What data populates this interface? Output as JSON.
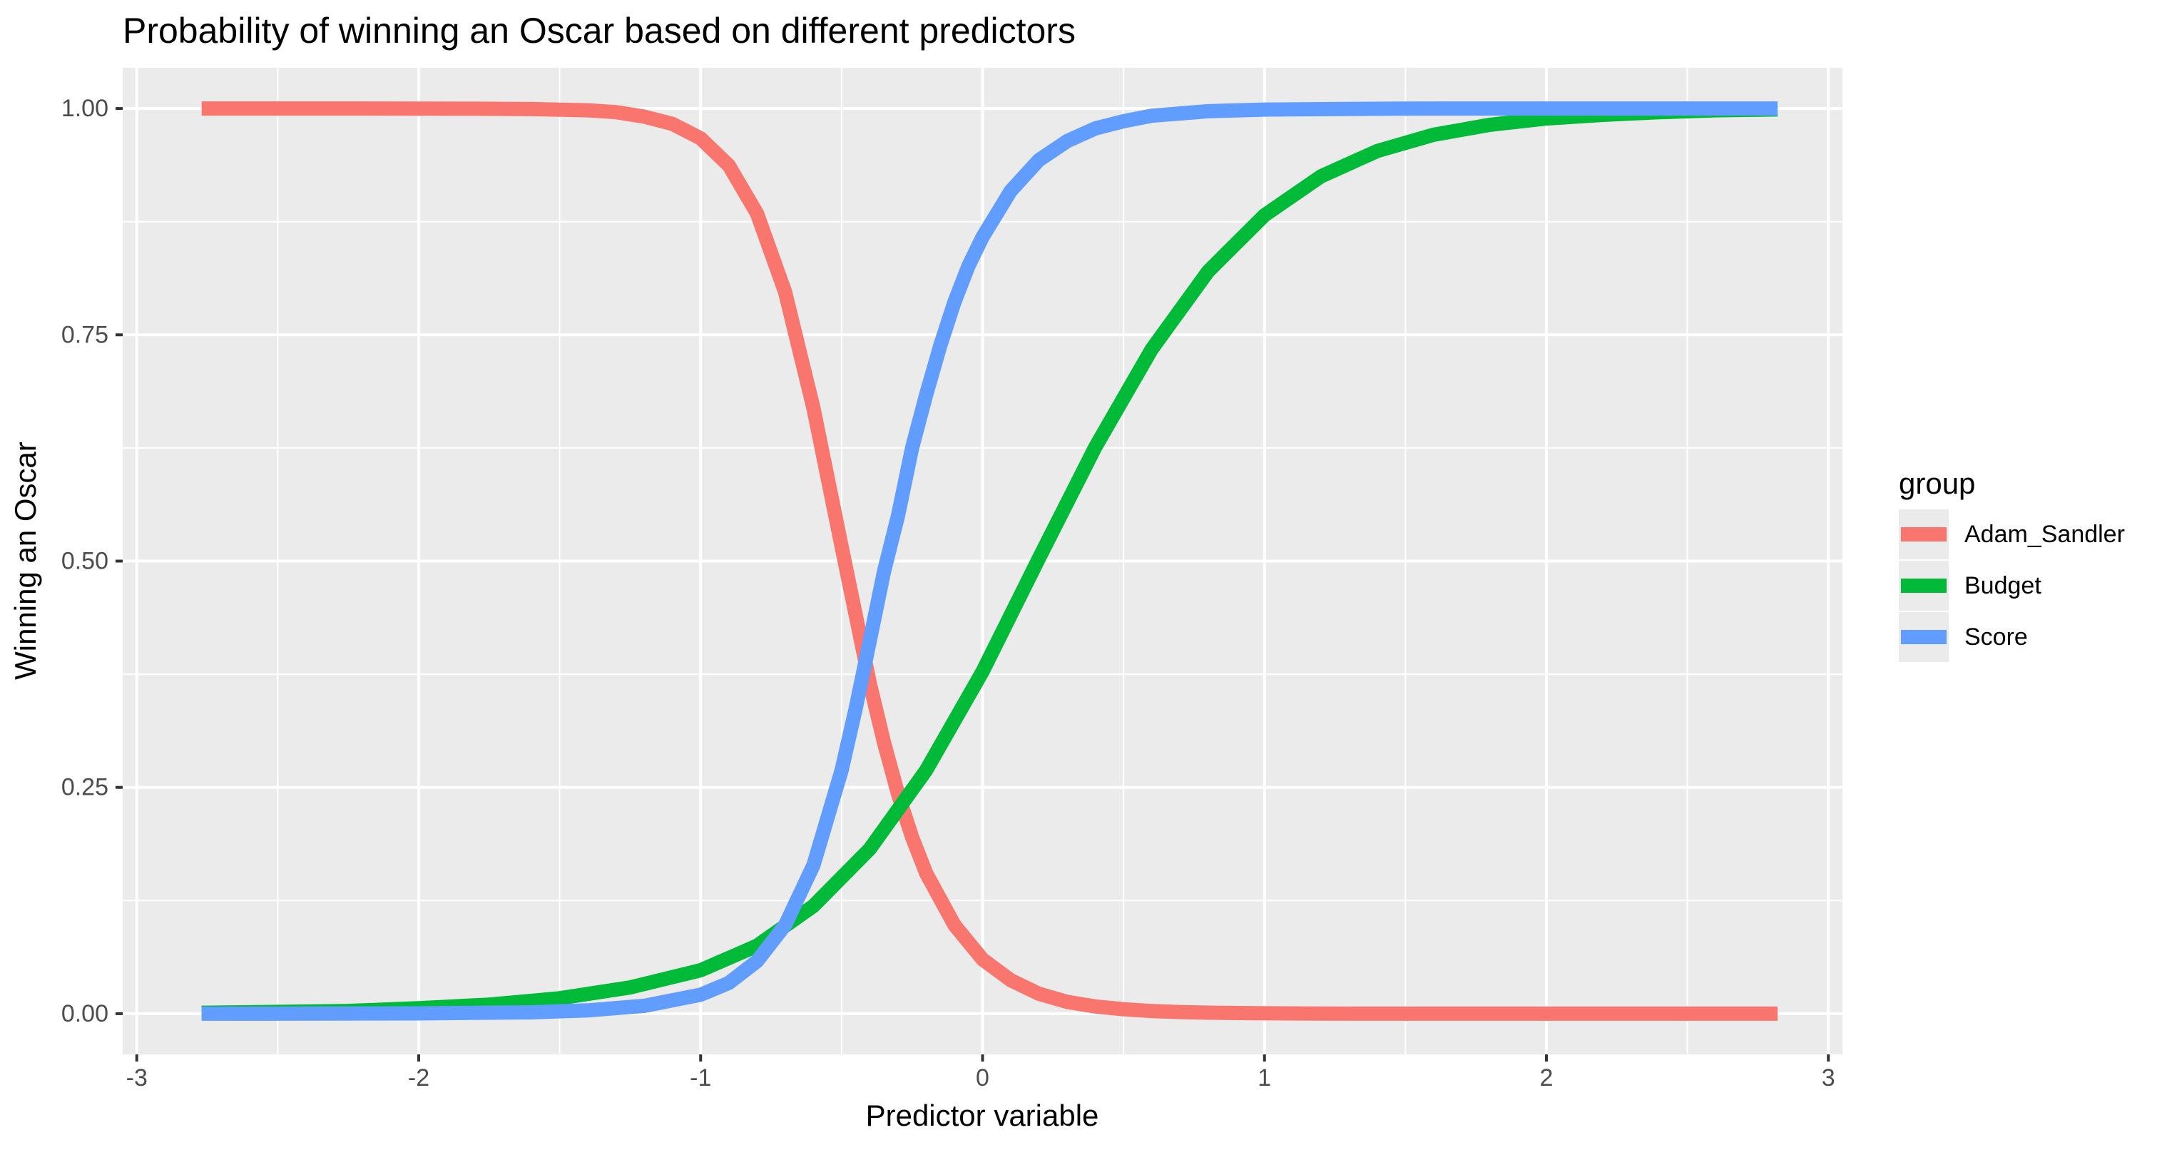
{
  "chart_data": {
    "type": "line",
    "title": "Probability of winning an Oscar based on different predictors",
    "xlabel": "Predictor variable",
    "ylabel": "Winning an Oscar",
    "xlim": [
      -3.05,
      3.05
    ],
    "ylim": [
      -0.045,
      1.045
    ],
    "grid": true,
    "x_ticks": [
      {
        "value": -3,
        "label": "-3"
      },
      {
        "value": -2,
        "label": "-2"
      },
      {
        "value": -1,
        "label": "-1"
      },
      {
        "value": 0,
        "label": "0"
      },
      {
        "value": 1,
        "label": "1"
      },
      {
        "value": 2,
        "label": "2"
      },
      {
        "value": 3,
        "label": "3"
      }
    ],
    "y_ticks": [
      {
        "value": 0,
        "label": "0.00"
      },
      {
        "value": 0.25,
        "label": "0.25"
      },
      {
        "value": 0.5,
        "label": "0.50"
      },
      {
        "value": 0.75,
        "label": "0.75"
      },
      {
        "value": 1,
        "label": "1.00"
      }
    ],
    "legend": {
      "title": "group",
      "placement": "right"
    },
    "series": [
      {
        "name": "Adam_Sandler",
        "color": "#F8766D",
        "x": [
          -2.77,
          -2.6,
          -2.4,
          -2.2,
          -2.0,
          -1.8,
          -1.6,
          -1.4,
          -1.3,
          -1.2,
          -1.1,
          -1.0,
          -0.9,
          -0.8,
          -0.7,
          -0.6,
          -0.5,
          -0.4,
          -0.35,
          -0.3,
          -0.25,
          -0.2,
          -0.1,
          0.0,
          0.1,
          0.2,
          0.3,
          0.4,
          0.5,
          0.6,
          0.7,
          0.8,
          1.0,
          1.2,
          1.5,
          2.0,
          2.5,
          2.82
        ],
        "y": [
          1.0,
          1.0,
          1.0,
          1.0,
          0.9999,
          0.9998,
          0.9994,
          0.998,
          0.996,
          0.991,
          0.983,
          0.967,
          0.937,
          0.884,
          0.797,
          0.669,
          0.516,
          0.365,
          0.3,
          0.243,
          0.195,
          0.155,
          0.098,
          0.06,
          0.037,
          0.022,
          0.013,
          0.008,
          0.0049,
          0.0029,
          0.0018,
          0.0011,
          0.0004,
          0.0001,
          0.0,
          0.0,
          0.0,
          0.0
        ]
      },
      {
        "name": "Budget",
        "color": "#00BA38",
        "x": [
          -2.77,
          -2.5,
          -2.25,
          -2.0,
          -1.75,
          -1.5,
          -1.25,
          -1.0,
          -0.8,
          -0.6,
          -0.4,
          -0.2,
          0.0,
          0.2,
          0.4,
          0.6,
          0.8,
          1.0,
          1.2,
          1.4,
          1.6,
          1.8,
          2.0,
          2.2,
          2.4,
          2.6,
          2.82
        ],
        "y": [
          0.001,
          0.002,
          0.003,
          0.006,
          0.01,
          0.017,
          0.029,
          0.048,
          0.075,
          0.119,
          0.182,
          0.269,
          0.378,
          0.503,
          0.626,
          0.734,
          0.82,
          0.882,
          0.925,
          0.953,
          0.971,
          0.982,
          0.989,
          0.993,
          0.996,
          0.998,
          0.999
        ]
      },
      {
        "name": "Score",
        "color": "#619CFF",
        "x": [
          -2.77,
          -2.5,
          -2.0,
          -1.6,
          -1.4,
          -1.2,
          -1.0,
          -0.9,
          -0.8,
          -0.7,
          -0.6,
          -0.5,
          -0.45,
          -0.4,
          -0.35,
          -0.3,
          -0.25,
          -0.2,
          -0.15,
          -0.1,
          -0.05,
          0.0,
          0.1,
          0.2,
          0.3,
          0.4,
          0.5,
          0.6,
          0.8,
          1.0,
          1.5,
          2.0,
          2.5,
          2.82
        ],
        "y": [
          0.0,
          0.0,
          0.0003,
          0.0015,
          0.0036,
          0.0087,
          0.021,
          0.034,
          0.058,
          0.098,
          0.164,
          0.269,
          0.337,
          0.412,
          0.488,
          0.55,
          0.625,
          0.684,
          0.738,
          0.786,
          0.826,
          0.858,
          0.909,
          0.943,
          0.964,
          0.978,
          0.986,
          0.992,
          0.997,
          0.9988,
          0.9999,
          1.0,
          1.0,
          1.0
        ]
      }
    ]
  }
}
